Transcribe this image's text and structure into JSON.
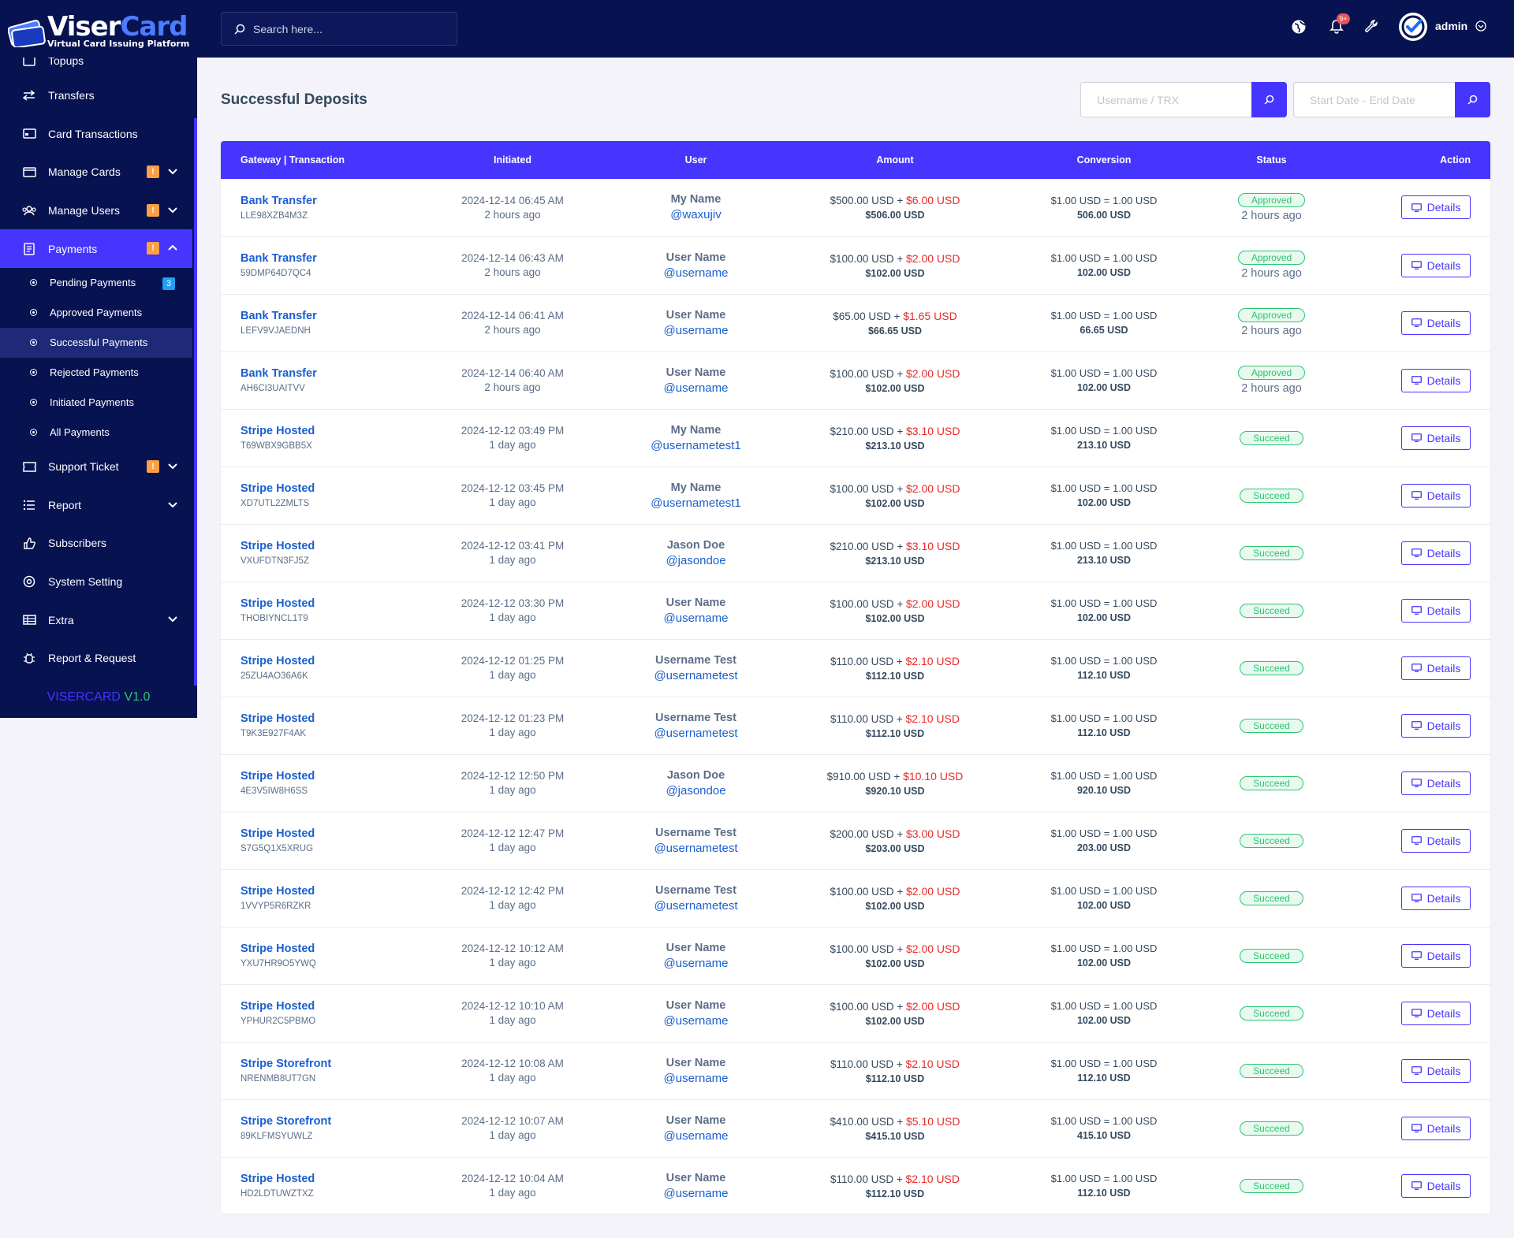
{
  "app": {
    "logo_main": "Viser",
    "logo_accent": "Card",
    "logo_tagline": "Virtual Card Issuing Platform",
    "version_name": "VISERCARD",
    "version_number": "V1.0"
  },
  "topbar": {
    "search_placeholder": "Search here...",
    "notification_count": "9+",
    "admin_name": "admin"
  },
  "sidebar": {
    "items": [
      {
        "label": "Topups",
        "icon": "topups-icon"
      },
      {
        "label": "Transfers",
        "icon": "transfer-icon"
      },
      {
        "label": "Card Transactions",
        "icon": "card-icon"
      },
      {
        "label": "Manage Cards",
        "icon": "cards-icon",
        "badge": "!"
      },
      {
        "label": "Manage Users",
        "icon": "users-icon",
        "badge": "!"
      },
      {
        "label": "Payments",
        "icon": "payments-icon",
        "badge": "!"
      }
    ],
    "payments_submenu": [
      {
        "label": "Pending Payments",
        "badge": "3"
      },
      {
        "label": "Approved Payments"
      },
      {
        "label": "Successful Payments"
      },
      {
        "label": "Rejected Payments"
      },
      {
        "label": "Initiated Payments"
      },
      {
        "label": "All Payments"
      }
    ],
    "items_after": [
      {
        "label": "Support Ticket",
        "icon": "ticket-icon",
        "badge": "!"
      },
      {
        "label": "Report",
        "icon": "report-icon"
      },
      {
        "label": "Subscribers",
        "icon": "thumbs-up-icon"
      },
      {
        "label": "System Setting",
        "icon": "settings-icon"
      },
      {
        "label": "Extra",
        "icon": "extra-icon"
      },
      {
        "label": "Report & Request",
        "icon": "bug-icon"
      }
    ]
  },
  "page": {
    "title": "Successful Deposits",
    "filter_user_placeholder": "Username / TRX",
    "filter_date_placeholder": "Start Date - End Date"
  },
  "table": {
    "headers": [
      "Gateway | Transaction",
      "Initiated",
      "User",
      "Amount",
      "Conversion",
      "Status",
      "Action"
    ],
    "action_label": "Details",
    "rows": [
      {
        "gateway": "Bank Transfer",
        "trx": "LLE98XZB4M3Z",
        "date": "2024-12-14 06:45 AM",
        "ago": "2 hours ago",
        "name": "My Name",
        "handle": "@waxujiv",
        "amount": "$500.00 USD",
        "fee": "$6.00 USD",
        "total": "$506.00 USD",
        "rate": "$1.00 USD = 1.00 USD",
        "converted": "506.00 USD",
        "status": "Approved",
        "status_ago": "2 hours ago"
      },
      {
        "gateway": "Bank Transfer",
        "trx": "59DMP64D7QC4",
        "date": "2024-12-14 06:43 AM",
        "ago": "2 hours ago",
        "name": "User Name",
        "handle": "@username",
        "amount": "$100.00 USD",
        "fee": "$2.00 USD",
        "total": "$102.00 USD",
        "rate": "$1.00 USD = 1.00 USD",
        "converted": "102.00 USD",
        "status": "Approved",
        "status_ago": "2 hours ago"
      },
      {
        "gateway": "Bank Transfer",
        "trx": "LEFV9VJAEDNH",
        "date": "2024-12-14 06:41 AM",
        "ago": "2 hours ago",
        "name": "User Name",
        "handle": "@username",
        "amount": "$65.00 USD",
        "fee": "$1.65 USD",
        "total": "$66.65 USD",
        "rate": "$1.00 USD = 1.00 USD",
        "converted": "66.65 USD",
        "status": "Approved",
        "status_ago": "2 hours ago"
      },
      {
        "gateway": "Bank Transfer",
        "trx": "AH6CI3UAITVV",
        "date": "2024-12-14 06:40 AM",
        "ago": "2 hours ago",
        "name": "User Name",
        "handle": "@username",
        "amount": "$100.00 USD",
        "fee": "$2.00 USD",
        "total": "$102.00 USD",
        "rate": "$1.00 USD = 1.00 USD",
        "converted": "102.00 USD",
        "status": "Approved",
        "status_ago": "2 hours ago"
      },
      {
        "gateway": "Stripe Hosted",
        "trx": "T69WBX9GBB5X",
        "date": "2024-12-12 03:49 PM",
        "ago": "1 day ago",
        "name": "My Name",
        "handle": "@usernametest1",
        "amount": "$210.00 USD",
        "fee": "$3.10 USD",
        "total": "$213.10 USD",
        "rate": "$1.00 USD = 1.00 USD",
        "converted": "213.10 USD",
        "status": "Succeed",
        "status_ago": ""
      },
      {
        "gateway": "Stripe Hosted",
        "trx": "XD7UTL2ZMLTS",
        "date": "2024-12-12 03:45 PM",
        "ago": "1 day ago",
        "name": "My Name",
        "handle": "@usernametest1",
        "amount": "$100.00 USD",
        "fee": "$2.00 USD",
        "total": "$102.00 USD",
        "rate": "$1.00 USD = 1.00 USD",
        "converted": "102.00 USD",
        "status": "Succeed",
        "status_ago": ""
      },
      {
        "gateway": "Stripe Hosted",
        "trx": "VXUFDTN3FJ5Z",
        "date": "2024-12-12 03:41 PM",
        "ago": "1 day ago",
        "name": "Jason Doe",
        "handle": "@jasondoe",
        "amount": "$210.00 USD",
        "fee": "$3.10 USD",
        "total": "$213.10 USD",
        "rate": "$1.00 USD = 1.00 USD",
        "converted": "213.10 USD",
        "status": "Succeed",
        "status_ago": ""
      },
      {
        "gateway": "Stripe Hosted",
        "trx": "THOBIYNCL1T9",
        "date": "2024-12-12 03:30 PM",
        "ago": "1 day ago",
        "name": "User Name",
        "handle": "@username",
        "amount": "$100.00 USD",
        "fee": "$2.00 USD",
        "total": "$102.00 USD",
        "rate": "$1.00 USD = 1.00 USD",
        "converted": "102.00 USD",
        "status": "Succeed",
        "status_ago": ""
      },
      {
        "gateway": "Stripe Hosted",
        "trx": "25ZU4AO36A6K",
        "date": "2024-12-12 01:25 PM",
        "ago": "1 day ago",
        "name": "Username Test",
        "handle": "@usernametest",
        "amount": "$110.00 USD",
        "fee": "$2.10 USD",
        "total": "$112.10 USD",
        "rate": "$1.00 USD = 1.00 USD",
        "converted": "112.10 USD",
        "status": "Succeed",
        "status_ago": ""
      },
      {
        "gateway": "Stripe Hosted",
        "trx": "T9K3E927F4AK",
        "date": "2024-12-12 01:23 PM",
        "ago": "1 day ago",
        "name": "Username Test",
        "handle": "@usernametest",
        "amount": "$110.00 USD",
        "fee": "$2.10 USD",
        "total": "$112.10 USD",
        "rate": "$1.00 USD = 1.00 USD",
        "converted": "112.10 USD",
        "status": "Succeed",
        "status_ago": ""
      },
      {
        "gateway": "Stripe Hosted",
        "trx": "4E3V5IW8H6SS",
        "date": "2024-12-12 12:50 PM",
        "ago": "1 day ago",
        "name": "Jason Doe",
        "handle": "@jasondoe",
        "amount": "$910.00 USD",
        "fee": "$10.10 USD",
        "total": "$920.10 USD",
        "rate": "$1.00 USD = 1.00 USD",
        "converted": "920.10 USD",
        "status": "Succeed",
        "status_ago": ""
      },
      {
        "gateway": "Stripe Hosted",
        "trx": "S7G5Q1X5XRUG",
        "date": "2024-12-12 12:47 PM",
        "ago": "1 day ago",
        "name": "Username Test",
        "handle": "@usernametest",
        "amount": "$200.00 USD",
        "fee": "$3.00 USD",
        "total": "$203.00 USD",
        "rate": "$1.00 USD = 1.00 USD",
        "converted": "203.00 USD",
        "status": "Succeed",
        "status_ago": ""
      },
      {
        "gateway": "Stripe Hosted",
        "trx": "1VVYP5R6RZKR",
        "date": "2024-12-12 12:42 PM",
        "ago": "1 day ago",
        "name": "Username Test",
        "handle": "@usernametest",
        "amount": "$100.00 USD",
        "fee": "$2.00 USD",
        "total": "$102.00 USD",
        "rate": "$1.00 USD = 1.00 USD",
        "converted": "102.00 USD",
        "status": "Succeed",
        "status_ago": ""
      },
      {
        "gateway": "Stripe Hosted",
        "trx": "YXU7HR9O5YWQ",
        "date": "2024-12-12 10:12 AM",
        "ago": "1 day ago",
        "name": "User Name",
        "handle": "@username",
        "amount": "$100.00 USD",
        "fee": "$2.00 USD",
        "total": "$102.00 USD",
        "rate": "$1.00 USD = 1.00 USD",
        "converted": "102.00 USD",
        "status": "Succeed",
        "status_ago": ""
      },
      {
        "gateway": "Stripe Hosted",
        "trx": "YPHUR2C5PBMO",
        "date": "2024-12-12 10:10 AM",
        "ago": "1 day ago",
        "name": "User Name",
        "handle": "@username",
        "amount": "$100.00 USD",
        "fee": "$2.00 USD",
        "total": "$102.00 USD",
        "rate": "$1.00 USD = 1.00 USD",
        "converted": "102.00 USD",
        "status": "Succeed",
        "status_ago": ""
      },
      {
        "gateway": "Stripe Storefront",
        "trx": "NRENMB8UT7GN",
        "date": "2024-12-12 10:08 AM",
        "ago": "1 day ago",
        "name": "User Name",
        "handle": "@username",
        "amount": "$110.00 USD",
        "fee": "$2.10 USD",
        "total": "$112.10 USD",
        "rate": "$1.00 USD = 1.00 USD",
        "converted": "112.10 USD",
        "status": "Succeed",
        "status_ago": ""
      },
      {
        "gateway": "Stripe Storefront",
        "trx": "89KLFMSYUWLZ",
        "date": "2024-12-12 10:07 AM",
        "ago": "1 day ago",
        "name": "User Name",
        "handle": "@username",
        "amount": "$410.00 USD",
        "fee": "$5.10 USD",
        "total": "$415.10 USD",
        "rate": "$1.00 USD = 1.00 USD",
        "converted": "415.10 USD",
        "status": "Succeed",
        "status_ago": ""
      },
      {
        "gateway": "Stripe Hosted",
        "trx": "HD2LDTUWZTXZ",
        "date": "2024-12-12 10:04 AM",
        "ago": "1 day ago",
        "name": "User Name",
        "handle": "@username",
        "amount": "$110.00 USD",
        "fee": "$2.10 USD",
        "total": "$112.10 USD",
        "rate": "$1.00 USD = 1.00 USD",
        "converted": "112.10 USD",
        "status": "Succeed",
        "status_ago": ""
      }
    ]
  }
}
